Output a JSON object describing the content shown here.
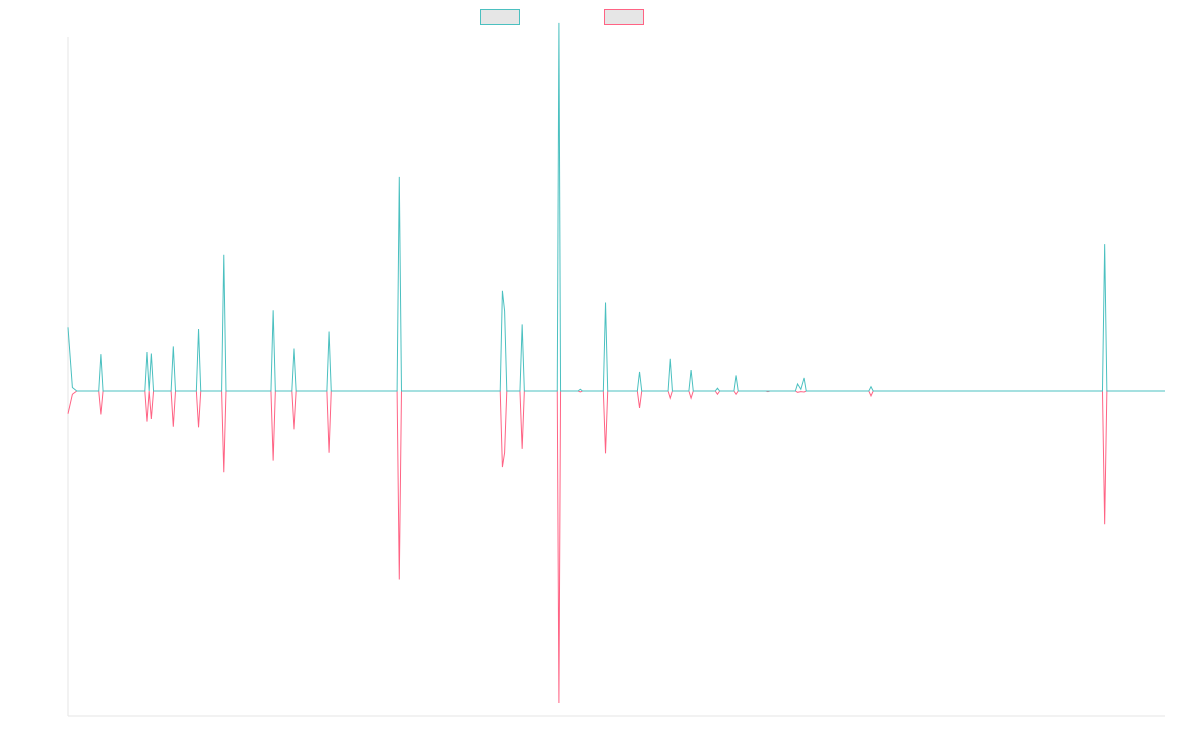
{
  "chart_data": {
    "type": "line",
    "title": "",
    "xlabel": "",
    "ylabel": "",
    "grid": false,
    "legend": "top-center",
    "ylim": [
      -100,
      100
    ],
    "series": [
      {
        "name": "",
        "color": "#4bc0c0",
        "points": [
          [
            0.0,
            18.0
          ],
          [
            0.4,
            1.0
          ],
          [
            0.8,
            0.0
          ],
          [
            2.8,
            0.0
          ],
          [
            3.0,
            10.4
          ],
          [
            3.2,
            0.0
          ],
          [
            7.0,
            0.0
          ],
          [
            7.2,
            11.0
          ],
          [
            7.4,
            0.0
          ],
          [
            7.6,
            10.6
          ],
          [
            7.8,
            0.0
          ],
          [
            9.4,
            0.0
          ],
          [
            9.6,
            12.6
          ],
          [
            9.8,
            0.0
          ],
          [
            11.7,
            0.0
          ],
          [
            11.9,
            17.5
          ],
          [
            12.1,
            0.0
          ],
          [
            14.0,
            0.0
          ],
          [
            14.2,
            38.5
          ],
          [
            14.4,
            0.0
          ],
          [
            18.5,
            0.0
          ],
          [
            18.7,
            22.8
          ],
          [
            18.9,
            0.0
          ],
          [
            20.4,
            0.0
          ],
          [
            20.6,
            12.0
          ],
          [
            20.8,
            0.0
          ],
          [
            23.6,
            0.0
          ],
          [
            23.8,
            16.8
          ],
          [
            24.0,
            0.0
          ],
          [
            30.0,
            0.0
          ],
          [
            30.2,
            60.5
          ],
          [
            30.4,
            0.0
          ],
          [
            39.4,
            0.0
          ],
          [
            39.6,
            28.3
          ],
          [
            39.8,
            22.6
          ],
          [
            40.0,
            0.0
          ],
          [
            41.2,
            0.0
          ],
          [
            41.4,
            18.8
          ],
          [
            41.6,
            0.0
          ],
          [
            44.6,
            0.0
          ],
          [
            44.75,
            104.0
          ],
          [
            44.9,
            0.0
          ],
          [
            46.5,
            0.0
          ],
          [
            46.7,
            0.5
          ],
          [
            46.9,
            0.0
          ],
          [
            48.8,
            0.0
          ],
          [
            49.0,
            25.0
          ],
          [
            49.2,
            0.0
          ],
          [
            51.9,
            0.0
          ],
          [
            52.1,
            5.4
          ],
          [
            52.3,
            0.0
          ],
          [
            54.7,
            0.0
          ],
          [
            54.9,
            9.1
          ],
          [
            55.1,
            0.0
          ],
          [
            56.6,
            0.0
          ],
          [
            56.8,
            5.9
          ],
          [
            57.0,
            0.0
          ],
          [
            59.0,
            0.0
          ],
          [
            59.2,
            0.8
          ],
          [
            59.4,
            0.0
          ],
          [
            60.7,
            0.0
          ],
          [
            60.9,
            4.4
          ],
          [
            61.1,
            0.0
          ],
          [
            66.3,
            0.0
          ],
          [
            66.5,
            2.0
          ],
          [
            66.8,
            0.5
          ],
          [
            67.1,
            3.7
          ],
          [
            67.3,
            0.0
          ],
          [
            73.0,
            0.0
          ],
          [
            73.2,
            1.2
          ],
          [
            73.4,
            0.0
          ],
          [
            94.3,
            0.0
          ],
          [
            94.5,
            41.5
          ],
          [
            94.7,
            0.0
          ],
          [
            100.0,
            0.0
          ]
        ]
      },
      {
        "name": "",
        "color": "#ff6384",
        "points": [
          [
            0.0,
            -7.0
          ],
          [
            0.4,
            -1.0
          ],
          [
            0.8,
            0.0
          ],
          [
            2.8,
            0.0
          ],
          [
            3.0,
            -7.2
          ],
          [
            3.2,
            0.0
          ],
          [
            7.0,
            0.0
          ],
          [
            7.2,
            -9.4
          ],
          [
            7.4,
            0.0
          ],
          [
            7.6,
            -8.6
          ],
          [
            7.8,
            0.0
          ],
          [
            9.4,
            0.0
          ],
          [
            9.6,
            -11.0
          ],
          [
            9.8,
            0.0
          ],
          [
            11.7,
            0.0
          ],
          [
            11.9,
            -11.2
          ],
          [
            12.1,
            0.0
          ],
          [
            14.0,
            0.0
          ],
          [
            14.2,
            -25.0
          ],
          [
            14.4,
            0.0
          ],
          [
            18.5,
            0.0
          ],
          [
            18.7,
            -21.4
          ],
          [
            18.9,
            0.0
          ],
          [
            20.4,
            0.0
          ],
          [
            20.6,
            -11.8
          ],
          [
            20.8,
            0.0
          ],
          [
            23.6,
            0.0
          ],
          [
            23.8,
            -19.0
          ],
          [
            24.0,
            0.0
          ],
          [
            30.0,
            0.0
          ],
          [
            30.2,
            -58.0
          ],
          [
            30.4,
            0.0
          ],
          [
            39.4,
            0.0
          ],
          [
            39.6,
            -23.4
          ],
          [
            39.8,
            -19.0
          ],
          [
            40.0,
            0.0
          ],
          [
            41.2,
            0.0
          ],
          [
            41.4,
            -17.8
          ],
          [
            41.6,
            0.0
          ],
          [
            44.6,
            0.0
          ],
          [
            44.75,
            -96.0
          ],
          [
            44.9,
            0.0
          ],
          [
            46.5,
            0.0
          ],
          [
            46.7,
            -0.3
          ],
          [
            46.9,
            0.0
          ],
          [
            48.8,
            0.0
          ],
          [
            49.0,
            -19.2
          ],
          [
            49.2,
            0.0
          ],
          [
            51.9,
            0.0
          ],
          [
            52.1,
            -5.2
          ],
          [
            52.3,
            0.0
          ],
          [
            54.7,
            0.0
          ],
          [
            54.9,
            -2.2
          ],
          [
            55.1,
            0.0
          ],
          [
            56.6,
            0.0
          ],
          [
            56.8,
            -2.2
          ],
          [
            57.0,
            0.0
          ],
          [
            59.0,
            0.0
          ],
          [
            59.2,
            -1.0
          ],
          [
            59.4,
            0.0
          ],
          [
            60.7,
            0.0
          ],
          [
            60.9,
            -1.0
          ],
          [
            61.1,
            0.0
          ],
          [
            63.6,
            0.0
          ],
          [
            63.8,
            -0.2
          ],
          [
            64.0,
            0.0
          ],
          [
            66.3,
            0.0
          ],
          [
            66.5,
            -0.4
          ],
          [
            66.8,
            -0.2
          ],
          [
            67.1,
            -0.3
          ],
          [
            67.3,
            0.0
          ],
          [
            73.0,
            0.0
          ],
          [
            73.2,
            -1.5
          ],
          [
            73.4,
            0.0
          ],
          [
            94.3,
            0.0
          ],
          [
            94.5,
            -41.0
          ],
          [
            94.7,
            0.0
          ],
          [
            100.0,
            0.0
          ]
        ]
      }
    ]
  }
}
